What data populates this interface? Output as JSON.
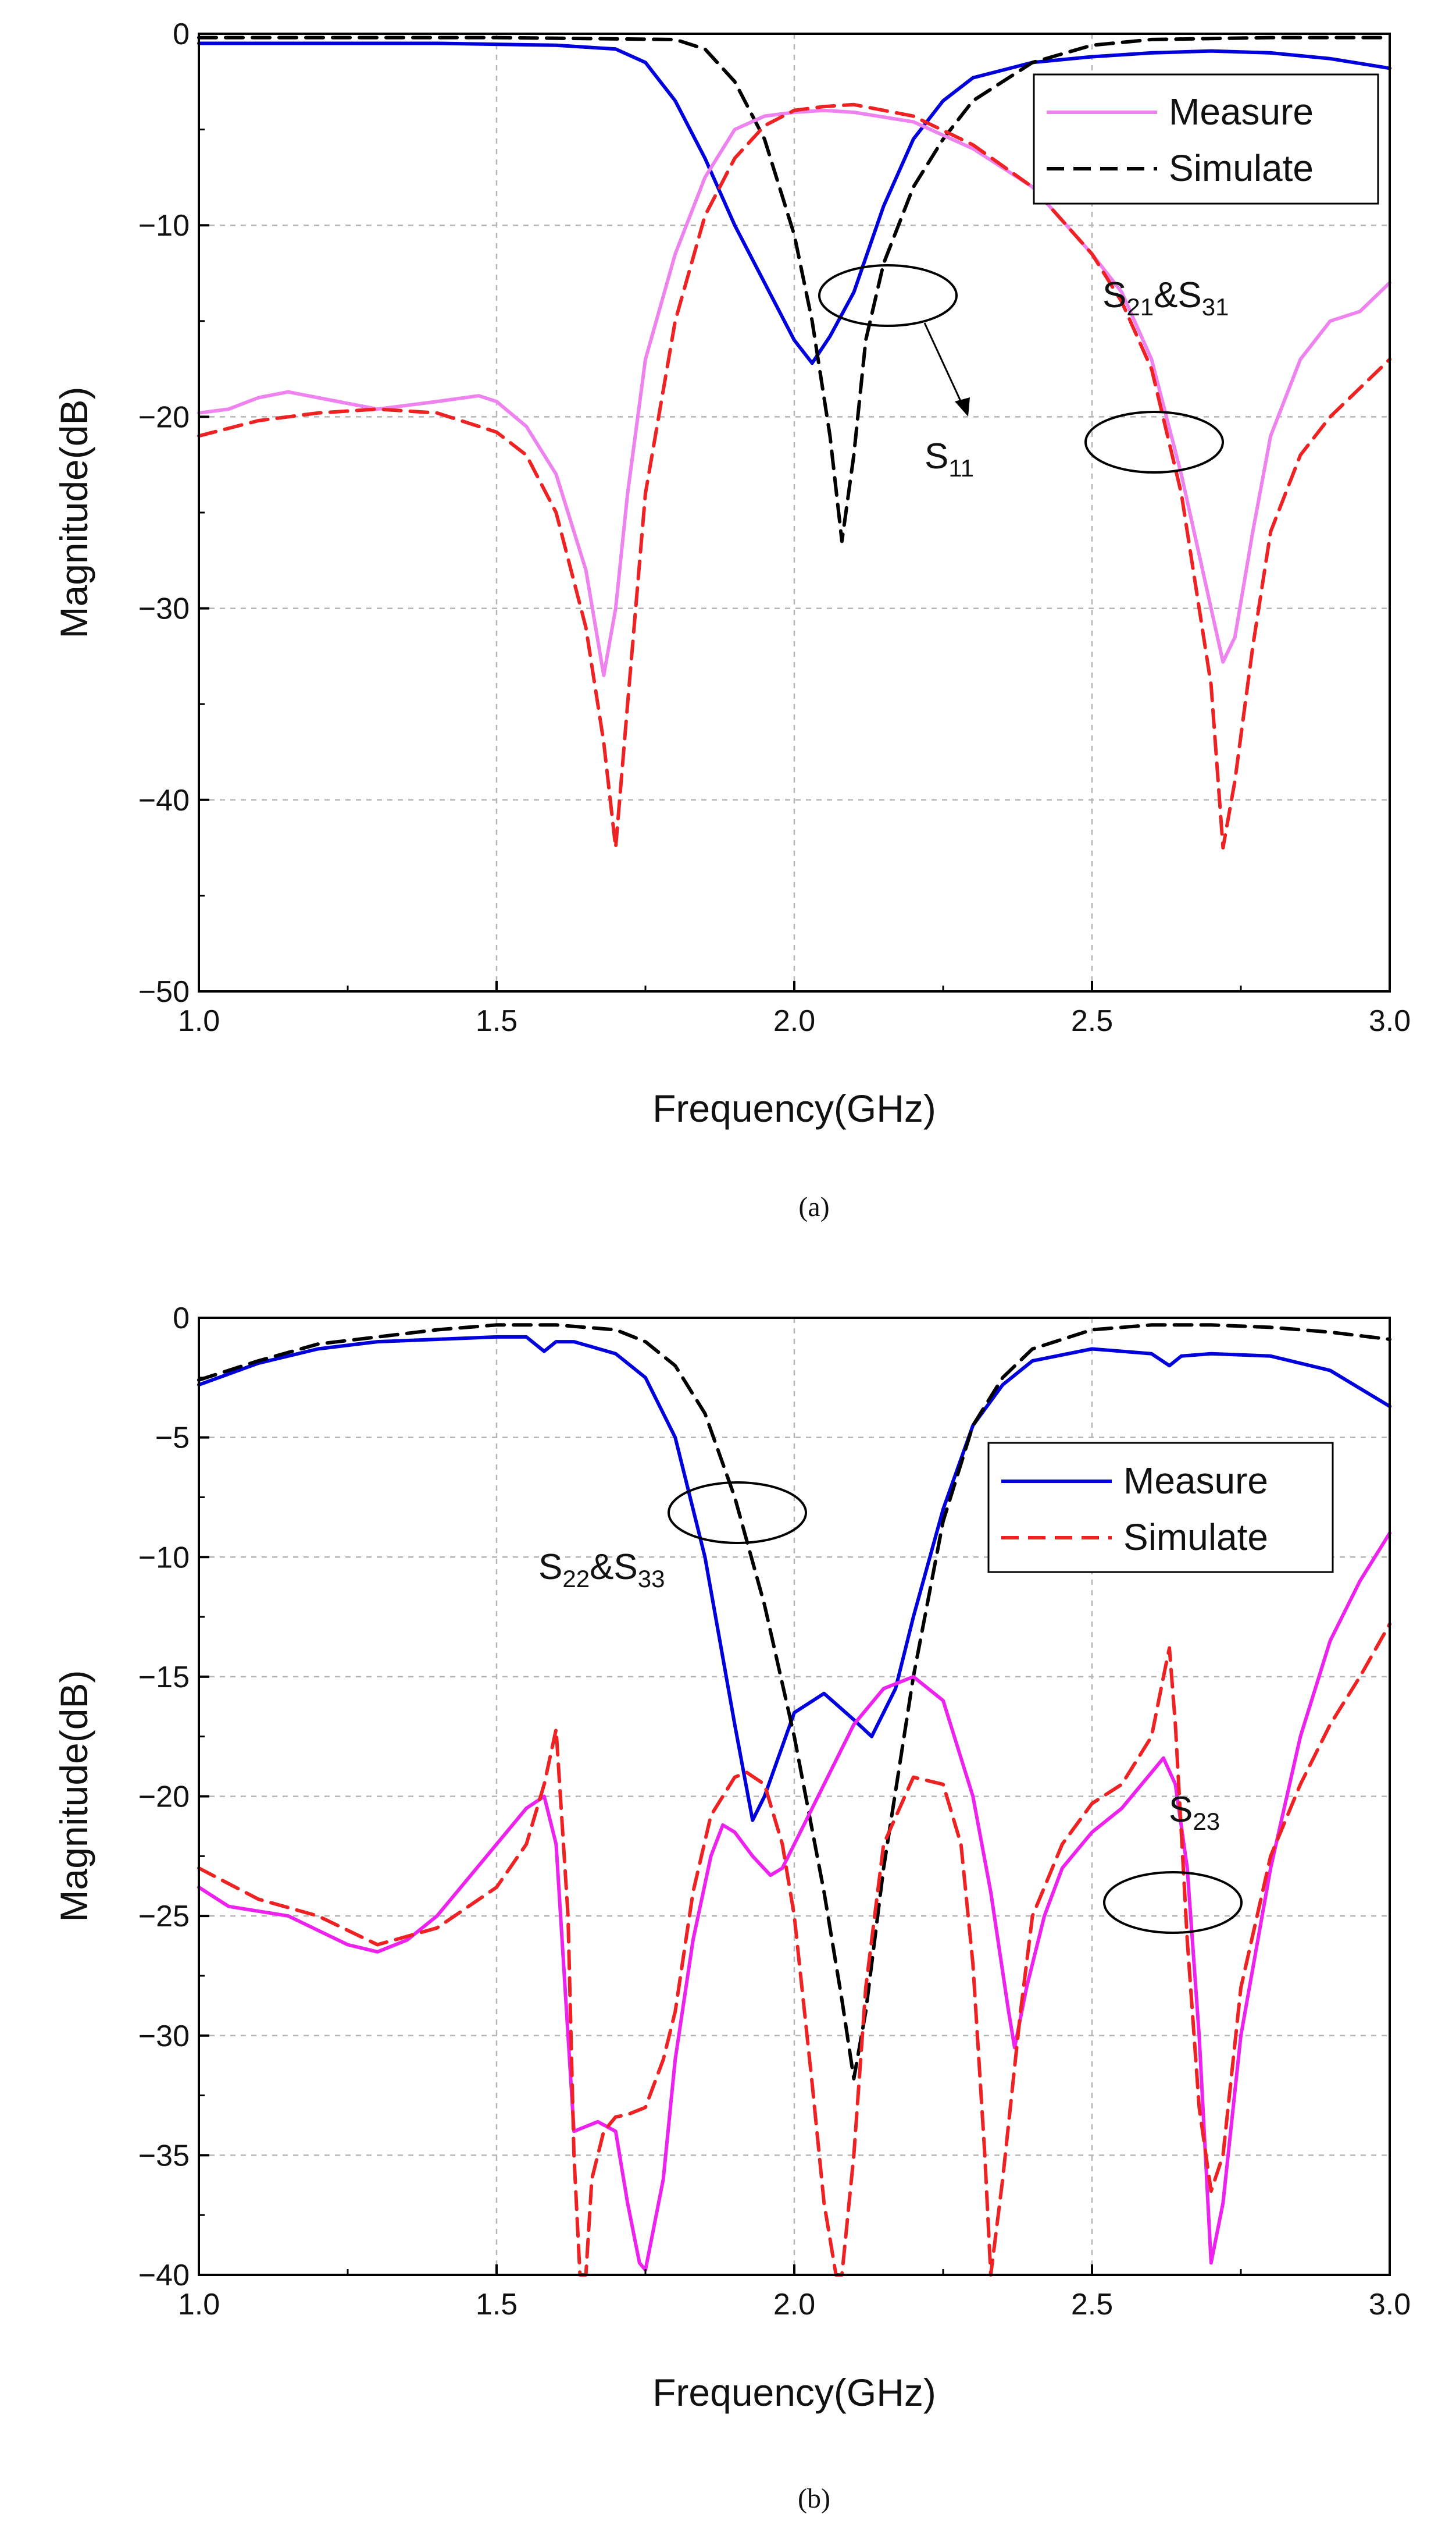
{
  "chart_data": [
    {
      "id": "a",
      "type": "line",
      "caption": "(a)",
      "xlabel": "Frequency(GHz)",
      "ylabel": "Magnitude(dB)",
      "xlim": [
        1.0,
        3.0
      ],
      "ylim": [
        -50,
        0
      ],
      "xticks": [
        1.0,
        1.5,
        2.0,
        2.5,
        3.0
      ],
      "xtick_labels": [
        "1.0",
        "1.5",
        "2.0",
        "2.5",
        "3.0"
      ],
      "yticks": [
        0,
        -10,
        -20,
        -30,
        -40,
        -50
      ],
      "ytick_labels": [
        "0",
        "−10",
        "−20",
        "−30",
        "−40",
        "−50"
      ],
      "grid": true,
      "legend": {
        "position": "top-right",
        "entries": [
          {
            "label": "Measure",
            "color": "#ee82ee",
            "dash": "solid"
          },
          {
            "label": "Simulate",
            "color": "#000000",
            "dash": "dashed"
          }
        ]
      },
      "annotations": [
        {
          "main": "S",
          "sub": "11",
          "suffix": "",
          "sub2": ""
        },
        {
          "main": "S",
          "sub": "21",
          "suffix": "&S",
          "sub2": "31"
        }
      ],
      "series": [
        {
          "name": "S11 Measure",
          "color": "#0000dd",
          "dash": "solid",
          "x": [
            1.0,
            1.2,
            1.4,
            1.6,
            1.7,
            1.75,
            1.8,
            1.85,
            1.9,
            1.95,
            2.0,
            2.03,
            2.06,
            2.1,
            2.15,
            2.2,
            2.25,
            2.3,
            2.4,
            2.5,
            2.6,
            2.7,
            2.8,
            2.9,
            3.0
          ],
          "y": [
            -0.5,
            -0.5,
            -0.5,
            -0.6,
            -0.8,
            -1.5,
            -3.5,
            -6.5,
            -10.0,
            -13.0,
            -16.0,
            -17.2,
            -15.8,
            -13.5,
            -9.0,
            -5.5,
            -3.5,
            -2.3,
            -1.5,
            -1.2,
            -1.0,
            -0.9,
            -1.0,
            -1.3,
            -1.8
          ]
        },
        {
          "name": "S11 Simulate",
          "color": "#000000",
          "dash": "dashed",
          "x": [
            1.0,
            1.5,
            1.8,
            1.85,
            1.9,
            1.95,
            2.0,
            2.03,
            2.06,
            2.08,
            2.1,
            2.12,
            2.15,
            2.2,
            2.25,
            2.3,
            2.4,
            2.5,
            2.6,
            2.8,
            3.0
          ],
          "y": [
            -0.2,
            -0.2,
            -0.3,
            -0.8,
            -2.5,
            -5.5,
            -10.5,
            -15.0,
            -21.0,
            -26.5,
            -22.0,
            -16.0,
            -12.0,
            -8.0,
            -5.5,
            -3.5,
            -1.5,
            -0.6,
            -0.3,
            -0.2,
            -0.2
          ]
        },
        {
          "name": "S21&S31 Measure",
          "color": "#ee82ee",
          "dash": "solid",
          "x": [
            1.0,
            1.05,
            1.1,
            1.15,
            1.2,
            1.3,
            1.4,
            1.47,
            1.5,
            1.55,
            1.6,
            1.65,
            1.68,
            1.7,
            1.72,
            1.75,
            1.8,
            1.85,
            1.9,
            1.95,
            2.0,
            2.05,
            2.1,
            2.2,
            2.3,
            2.4,
            2.5,
            2.55,
            2.6,
            2.65,
            2.7,
            2.72,
            2.74,
            2.77,
            2.8,
            2.85,
            2.9,
            2.95,
            3.0
          ],
          "y": [
            -19.8,
            -19.6,
            -19.0,
            -18.7,
            -19.0,
            -19.6,
            -19.2,
            -18.9,
            -19.2,
            -20.5,
            -23.0,
            -28.0,
            -33.5,
            -30.0,
            -24.0,
            -17.0,
            -11.5,
            -7.5,
            -5.0,
            -4.3,
            -4.1,
            -4.0,
            -4.1,
            -4.6,
            -6.0,
            -8.0,
            -11.5,
            -13.5,
            -17.0,
            -23.0,
            -30.0,
            -32.8,
            -31.5,
            -26.0,
            -21.0,
            -17.0,
            -15.0,
            -14.5,
            -13.0
          ]
        },
        {
          "name": "S21&S31 Simulate",
          "color": "#ee2222",
          "dash": "dashed",
          "x": [
            1.0,
            1.1,
            1.2,
            1.3,
            1.4,
            1.5,
            1.55,
            1.6,
            1.65,
            1.68,
            1.7,
            1.72,
            1.75,
            1.8,
            1.85,
            1.9,
            1.95,
            2.0,
            2.05,
            2.1,
            2.2,
            2.3,
            2.4,
            2.5,
            2.55,
            2.6,
            2.65,
            2.7,
            2.72,
            2.74,
            2.77,
            2.8,
            2.85,
            2.9,
            2.95,
            3.0
          ],
          "y": [
            -21.0,
            -20.2,
            -19.8,
            -19.6,
            -19.8,
            -20.8,
            -22.0,
            -25.0,
            -31.0,
            -37.0,
            -42.5,
            -35.0,
            -24.0,
            -15.0,
            -9.5,
            -6.5,
            -4.8,
            -4.0,
            -3.8,
            -3.7,
            -4.3,
            -5.8,
            -8.0,
            -11.5,
            -14.0,
            -17.5,
            -24.0,
            -34.0,
            -42.5,
            -39.0,
            -32.0,
            -26.0,
            -22.0,
            -20.0,
            -18.5,
            -17.0
          ]
        }
      ]
    },
    {
      "id": "b",
      "type": "line",
      "caption": "(b)",
      "xlabel": "Frequency(GHz)",
      "ylabel": "Magnitude(dB)",
      "xlim": [
        1.0,
        3.0
      ],
      "ylim": [
        -40,
        0
      ],
      "xticks": [
        1.0,
        1.5,
        2.0,
        2.5,
        3.0
      ],
      "xtick_labels": [
        "1.0",
        "1.5",
        "2.0",
        "2.5",
        "3.0"
      ],
      "yticks": [
        0,
        -5,
        -10,
        -15,
        -20,
        -25,
        -30,
        -35,
        -40
      ],
      "ytick_labels": [
        "0",
        "−5",
        "−10",
        "−15",
        "−20",
        "−25",
        "−30",
        "−35",
        "−40"
      ],
      "grid": true,
      "legend": {
        "position": "top-right",
        "entries": [
          {
            "label": "Measure",
            "color": "#0000dd",
            "dash": "solid"
          },
          {
            "label": "Simulate",
            "color": "#ee2222",
            "dash": "dashed"
          }
        ]
      },
      "annotations": [
        {
          "main": "S",
          "sub": "22",
          "suffix": "&S",
          "sub2": "33"
        },
        {
          "main": "S",
          "sub": "23",
          "suffix": "",
          "sub2": ""
        }
      ],
      "series": [
        {
          "name": "S22&S33 Measure",
          "color": "#0000dd",
          "dash": "solid",
          "x": [
            1.0,
            1.1,
            1.2,
            1.3,
            1.4,
            1.5,
            1.55,
            1.58,
            1.6,
            1.63,
            1.7,
            1.75,
            1.8,
            1.85,
            1.9,
            1.93,
            1.95,
            2.0,
            2.05,
            2.1,
            2.13,
            2.17,
            2.2,
            2.25,
            2.3,
            2.35,
            2.4,
            2.5,
            2.6,
            2.63,
            2.65,
            2.7,
            2.8,
            2.9,
            3.0
          ],
          "y": [
            -2.8,
            -1.9,
            -1.3,
            -1.0,
            -0.9,
            -0.8,
            -0.8,
            -1.4,
            -1.0,
            -1.0,
            -1.5,
            -2.5,
            -5.0,
            -10.0,
            -17.0,
            -21.0,
            -20.0,
            -16.5,
            -15.7,
            -16.8,
            -17.5,
            -15.5,
            -12.5,
            -8.0,
            -4.5,
            -2.8,
            -1.8,
            -1.3,
            -1.5,
            -2.0,
            -1.6,
            -1.5,
            -1.6,
            -2.2,
            -3.7
          ]
        },
        {
          "name": "S22&S33 Simulate",
          "color": "#000000",
          "dash": "dashed",
          "x": [
            1.0,
            1.1,
            1.2,
            1.3,
            1.4,
            1.5,
            1.6,
            1.7,
            1.75,
            1.8,
            1.85,
            1.9,
            1.95,
            2.0,
            2.05,
            2.08,
            2.1,
            2.12,
            2.15,
            2.2,
            2.25,
            2.3,
            2.35,
            2.4,
            2.5,
            2.6,
            2.7,
            2.8,
            2.9,
            3.0
          ],
          "y": [
            -2.6,
            -1.8,
            -1.1,
            -0.8,
            -0.5,
            -0.3,
            -0.3,
            -0.5,
            -1.0,
            -2.0,
            -4.0,
            -7.5,
            -12.0,
            -17.5,
            -24.0,
            -28.5,
            -31.8,
            -29.0,
            -23.0,
            -15.0,
            -8.5,
            -4.5,
            -2.5,
            -1.3,
            -0.5,
            -0.3,
            -0.3,
            -0.4,
            -0.6,
            -0.9
          ]
        },
        {
          "name": "S23 Measure",
          "color": "#ee22ee",
          "dash": "solid",
          "x": [
            1.0,
            1.05,
            1.1,
            1.15,
            1.2,
            1.25,
            1.3,
            1.35,
            1.4,
            1.45,
            1.5,
            1.55,
            1.58,
            1.6,
            1.62,
            1.63,
            1.65,
            1.67,
            1.7,
            1.72,
            1.74,
            1.75,
            1.78,
            1.8,
            1.83,
            1.86,
            1.88,
            1.9,
            1.93,
            1.96,
            1.98,
            2.0,
            2.05,
            2.1,
            2.15,
            2.2,
            2.25,
            2.3,
            2.33,
            2.36,
            2.37,
            2.39,
            2.42,
            2.45,
            2.5,
            2.55,
            2.6,
            2.62,
            2.64,
            2.66,
            2.68,
            2.7,
            2.72,
            2.75,
            2.8,
            2.85,
            2.9,
            2.95,
            3.0
          ],
          "y": [
            -23.8,
            -24.6,
            -24.8,
            -25.0,
            -25.6,
            -26.2,
            -26.5,
            -26.0,
            -25.0,
            -23.5,
            -22.0,
            -20.5,
            -20.0,
            -22.0,
            -30.0,
            -34.0,
            -33.8,
            -33.6,
            -34.0,
            -37.0,
            -39.5,
            -39.8,
            -36.0,
            -31.0,
            -26.0,
            -22.5,
            -21.2,
            -21.5,
            -22.5,
            -23.3,
            -23.0,
            -22.0,
            -19.5,
            -17.0,
            -15.5,
            -15.0,
            -16.0,
            -20.0,
            -24.0,
            -29.0,
            -30.5,
            -28.0,
            -25.0,
            -23.0,
            -21.5,
            -20.5,
            -19.0,
            -18.4,
            -19.5,
            -23.0,
            -30.0,
            -39.5,
            -37.0,
            -30.0,
            -23.0,
            -17.5,
            -13.5,
            -11.0,
            -9.0
          ]
        },
        {
          "name": "S23 Simulate",
          "color": "#ee2222",
          "dash": "dashed",
          "x": [
            1.0,
            1.1,
            1.2,
            1.3,
            1.4,
            1.5,
            1.55,
            1.58,
            1.6,
            1.62,
            1.63,
            1.64,
            1.65,
            1.66,
            1.68,
            1.7,
            1.72,
            1.75,
            1.78,
            1.8,
            1.83,
            1.86,
            1.9,
            1.92,
            1.95,
            1.98,
            2.0,
            2.03,
            2.05,
            2.07,
            2.08,
            2.1,
            2.12,
            2.15,
            2.2,
            2.25,
            2.28,
            2.3,
            2.32,
            2.33,
            2.35,
            2.38,
            2.4,
            2.45,
            2.5,
            2.55,
            2.6,
            2.62,
            2.63,
            2.64,
            2.66,
            2.68,
            2.7,
            2.72,
            2.75,
            2.8,
            2.85,
            2.9,
            2.95,
            3.0
          ],
          "y": [
            -23.0,
            -24.3,
            -25.0,
            -26.2,
            -25.5,
            -23.8,
            -22.0,
            -19.5,
            -17.2,
            -25.0,
            -35.0,
            -40.0,
            -40.0,
            -36.0,
            -34.0,
            -33.4,
            -33.3,
            -33.0,
            -31.0,
            -29.0,
            -24.0,
            -20.8,
            -19.2,
            -19.0,
            -19.5,
            -22.0,
            -25.0,
            -32.0,
            -37.0,
            -40.0,
            -40.0,
            -35.0,
            -28.0,
            -22.0,
            -19.2,
            -19.5,
            -22.0,
            -27.0,
            -35.0,
            -40.0,
            -36.0,
            -29.0,
            -25.0,
            -22.0,
            -20.3,
            -19.5,
            -17.5,
            -15.0,
            -13.8,
            -17.0,
            -26.0,
            -33.0,
            -36.5,
            -35.0,
            -28.0,
            -22.5,
            -19.5,
            -17.0,
            -15.0,
            -12.8
          ]
        }
      ]
    }
  ]
}
